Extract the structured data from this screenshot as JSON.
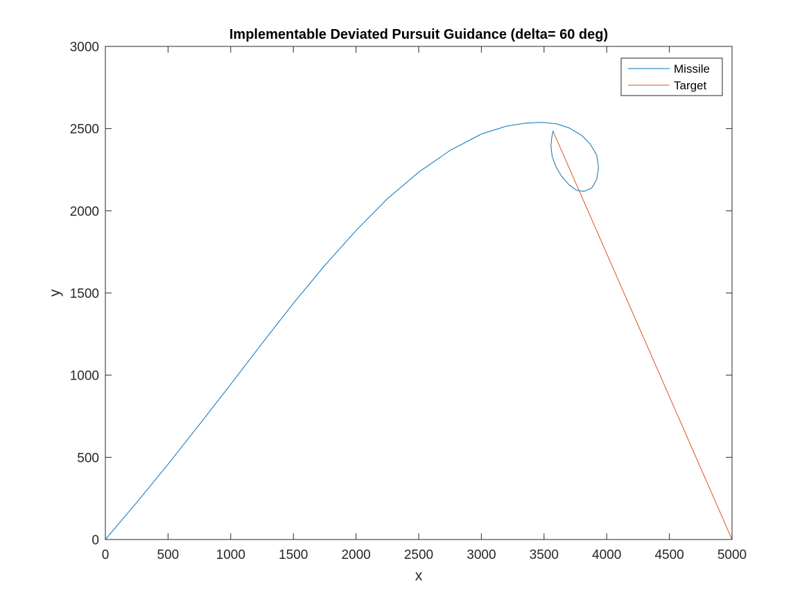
{
  "chart_data": {
    "type": "line",
    "title": "Implementable Deviated Pursuit Guidance (delta= 60 deg)",
    "xlabel": "x",
    "ylabel": "y",
    "xlim": [
      0,
      5000
    ],
    "ylim": [
      0,
      3000
    ],
    "xticks": [
      0,
      500,
      1000,
      1500,
      2000,
      2500,
      3000,
      3500,
      4000,
      4500,
      5000
    ],
    "yticks": [
      0,
      500,
      1000,
      1500,
      2000,
      2500,
      3000
    ],
    "grid": false,
    "legend_position": "top-right",
    "series": [
      {
        "name": "Missile",
        "color": "#0072BD",
        "x": [
          0,
          250,
          500,
          750,
          1000,
          1250,
          1500,
          1750,
          2000,
          2250,
          2500,
          2750,
          3000,
          3200,
          3350,
          3480,
          3600,
          3700,
          3800,
          3870,
          3920,
          3935,
          3920,
          3880,
          3820,
          3760,
          3700,
          3640,
          3595,
          3565,
          3555,
          3562,
          3573
        ],
        "y": [
          0,
          225,
          458,
          699,
          944,
          1193,
          1437,
          1667,
          1880,
          2073,
          2235,
          2367,
          2467,
          2515,
          2533,
          2538,
          2529,
          2504,
          2459,
          2404,
          2339,
          2262,
          2190,
          2138,
          2118,
          2124,
          2158,
          2210,
          2268,
          2330,
          2392,
          2448,
          2488
        ]
      },
      {
        "name": "Target",
        "color": "#D95319",
        "x": [
          5000,
          3573
        ],
        "y": [
          0,
          2482
        ]
      }
    ]
  }
}
